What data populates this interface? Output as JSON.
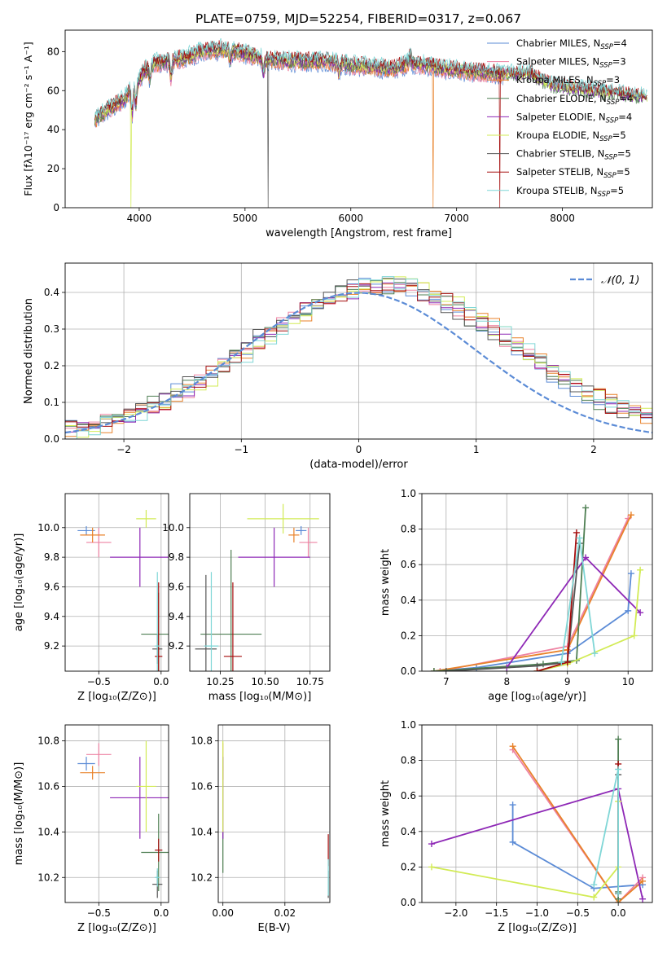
{
  "title": "PLATE=0759, MJD=52254, FIBERID=0317, z=0.067",
  "colors": {
    "chabrier_miles": "#5b8bd6",
    "salpeter_miles": "#ee82a2",
    "kroupa_miles": "#e8822a",
    "chabrier_elodie": "#4f7f53",
    "salpeter_elodie": "#8e28b6",
    "kroupa_elodie": "#d2eb55",
    "chabrier_stelib": "#555555",
    "salpeter_stelib": "#a50d0d",
    "kroupa_stelib": "#7fd6d6",
    "normal": "#5b8bd6"
  },
  "chart_data": [
    {
      "id": "spectrum",
      "type": "line",
      "xlabel": "wavelength [Angstrom, rest frame]",
      "ylabel": "Flux [fλ10⁻¹⁷ erg cm⁻² s⁻¹ A⁻¹]",
      "xlim": [
        3300,
        8850
      ],
      "ylim": [
        0,
        91
      ],
      "xticks": [
        "4000",
        "5000",
        "6000",
        "7000",
        "8000"
      ],
      "xtick_values": [
        4000,
        5000,
        6000,
        7000,
        8000
      ],
      "yticks": [
        "0",
        "20",
        "40",
        "60",
        "80"
      ],
      "ytick_values": [
        0,
        20,
        40,
        60,
        80
      ],
      "continuum": {
        "x": [
          3580,
          3700,
          3850,
          3950,
          4050,
          4150,
          4300,
          4450,
          4600,
          4800,
          5000,
          5200,
          5400,
          5600,
          5800,
          6000,
          6200,
          6400,
          6550,
          6700,
          6900,
          7100,
          7300,
          7500,
          7700,
          7800,
          7900,
          8200,
          8500,
          8800
        ],
        "y": [
          45,
          50,
          55,
          62,
          70,
          74,
          75,
          77,
          80,
          81,
          79,
          76,
          75,
          75,
          75,
          73,
          72,
          71,
          74,
          73,
          71,
          70,
          69,
          68,
          68,
          65,
          62,
          60,
          58,
          56
        ]
      },
      "legend": [
        "Chabrier MILES, N",
        "Salpeter MILES, N",
        "Kroupa MILES, N",
        "Chabrier ELODIE, N",
        "Salpeter ELODIE, N",
        "Kroupa ELODIE, N",
        "Chabrier STELIB, N",
        "Salpeter STELIB, N",
        "Kroupa STELIB, N"
      ],
      "legend_sub": "SSP",
      "legend_n": [
        "=4",
        "=3",
        "=3",
        "=4",
        "=4",
        "=5",
        "=5",
        "=5",
        "=5"
      ],
      "legend_placement": "upper-right",
      "grid": false
    },
    {
      "id": "residuals",
      "type": "step",
      "xlabel": "(data-model)/error",
      "ylabel": "Normed distribution",
      "xlim": [
        -2.5,
        2.5
      ],
      "ylim": [
        0,
        0.48
      ],
      "xticks": [
        "−2",
        "−1",
        "0",
        "1",
        "2"
      ],
      "xtick_values": [
        -2,
        -1,
        0,
        1,
        2
      ],
      "yticks": [
        "0.0",
        "0.1",
        "0.2",
        "0.3",
        "0.4"
      ],
      "ytick_values": [
        0,
        0.1,
        0.2,
        0.3,
        0.4
      ],
      "legend": "𝒩(0, 1)",
      "legend_placement": "upper-right",
      "grid": true
    },
    {
      "id": "z-age",
      "type": "errorbar",
      "xlabel": "Z [log₁₀(Z/Z⊙)]",
      "ylabel": "age  [log₁₀(age/yr)]",
      "xlim": [
        -0.77,
        0.06
      ],
      "ylim": [
        9.03,
        10.23
      ],
      "xticks": [
        "−0.5",
        "0.0"
      ],
      "xtick_values": [
        -0.5,
        0
      ],
      "yticks": [
        "9.2",
        "9.4",
        "9.6",
        "9.8",
        "10.0"
      ],
      "ytick_values": [
        9.2,
        9.4,
        9.6,
        9.8,
        10.0
      ],
      "grid": true,
      "points": [
        {
          "x": -0.6,
          "y": 9.98,
          "xerr": 0.07,
          "yerr": 0.03,
          "c": "chabrier_miles"
        },
        {
          "x": -0.5,
          "y": 9.9,
          "xerr": 0.1,
          "yerr": 0.1,
          "c": "salpeter_miles"
        },
        {
          "x": -0.55,
          "y": 9.95,
          "xerr": 0.1,
          "yerr": 0.05,
          "c": "kroupa_miles"
        },
        {
          "x": -0.02,
          "y": 9.28,
          "xerr": 0.14,
          "yerr": 0.28,
          "c": "chabrier_elodie"
        },
        {
          "x": -0.17,
          "y": 9.8,
          "xerr": 0.24,
          "yerr": 0.2,
          "c": "salpeter_elodie"
        },
        {
          "x": -0.12,
          "y": 10.06,
          "xerr": 0.08,
          "yerr": 0.06,
          "c": "kroupa_elodie"
        },
        {
          "x": -0.03,
          "y": 9.18,
          "xerr": 0.04,
          "yerr": 0.1,
          "c": "chabrier_stelib"
        },
        {
          "x": -0.02,
          "y": 9.13,
          "xerr": 0.03,
          "yerr": 0.5,
          "c": "salpeter_stelib"
        },
        {
          "x": -0.03,
          "y": 9.2,
          "xerr": 0.02,
          "yerr": 0.5,
          "c": "kroupa_stelib"
        }
      ]
    },
    {
      "id": "mass-age",
      "type": "errorbar",
      "xlabel": "mass [log₁₀(M/M⊙)]",
      "ylabel": "",
      "xlim": [
        10.08,
        10.86
      ],
      "ylim": [
        9.03,
        10.23
      ],
      "xticks": [
        "10.25",
        "10.50",
        "10.75"
      ],
      "xtick_values": [
        10.25,
        10.5,
        10.75
      ],
      "yticks": [
        "9.2",
        "9.4",
        "9.6",
        "9.8",
        "10.0"
      ],
      "ytick_values": [
        9.2,
        9.4,
        9.6,
        9.8,
        10.0
      ],
      "grid": true,
      "points": [
        {
          "x": 10.7,
          "y": 9.98,
          "xerr": 0.03,
          "yerr": 0.03,
          "c": "chabrier_miles"
        },
        {
          "x": 10.74,
          "y": 9.9,
          "xerr": 0.05,
          "yerr": 0.1,
          "c": "salpeter_miles"
        },
        {
          "x": 10.66,
          "y": 9.95,
          "xerr": 0.03,
          "yerr": 0.05,
          "c": "kroupa_miles"
        },
        {
          "x": 10.31,
          "y": 9.28,
          "xerr": 0.17,
          "yerr": 0.57,
          "c": "chabrier_elodie"
        },
        {
          "x": 10.55,
          "y": 9.8,
          "xerr": 0.2,
          "yerr": 0.2,
          "c": "salpeter_elodie"
        },
        {
          "x": 10.6,
          "y": 10.06,
          "xerr": 0.2,
          "yerr": 0.1,
          "c": "kroupa_elodie"
        },
        {
          "x": 10.17,
          "y": 9.18,
          "xerr": 0.06,
          "yerr": 0.5,
          "c": "chabrier_stelib"
        },
        {
          "x": 10.32,
          "y": 9.13,
          "xerr": 0.05,
          "yerr": 0.5,
          "c": "salpeter_stelib"
        },
        {
          "x": 10.2,
          "y": 9.2,
          "xerr": 0.04,
          "yerr": 0.5,
          "c": "kroupa_stelib"
        }
      ]
    },
    {
      "id": "age-weight",
      "type": "line",
      "xlabel": "age  [log₁₀(age/yr)]",
      "ylabel": "mass weight",
      "xlim": [
        6.6,
        10.4
      ],
      "ylim": [
        0,
        1
      ],
      "xticks": [
        "7",
        "8",
        "9",
        "10"
      ],
      "xtick_values": [
        7,
        8,
        9,
        10
      ],
      "yticks": [
        "0.0",
        "0.2",
        "0.4",
        "0.6",
        "0.8",
        "1.0"
      ],
      "ytick_values": [
        0,
        0.2,
        0.4,
        0.6,
        0.8,
        1.0
      ],
      "grid": true,
      "series": [
        {
          "c": "chabrier_miles",
          "x": [
            6.8,
            7.5,
            9.0,
            10.0,
            10.05
          ],
          "y": [
            0.0,
            0.02,
            0.1,
            0.34,
            0.55
          ]
        },
        {
          "c": "salpeter_miles",
          "x": [
            6.9,
            9.0,
            10.0
          ],
          "y": [
            0.0,
            0.14,
            0.86
          ]
        },
        {
          "c": "kroupa_miles",
          "x": [
            6.8,
            9.0,
            10.05
          ],
          "y": [
            0.0,
            0.12,
            0.88
          ]
        },
        {
          "c": "chabrier_elodie",
          "x": [
            6.8,
            8.6,
            9.15,
            9.3
          ],
          "y": [
            0.0,
            0.04,
            0.06,
            0.92
          ]
        },
        {
          "c": "salpeter_elodie",
          "x": [
            8.0,
            9.3,
            10.2
          ],
          "y": [
            0.02,
            0.64,
            0.33
          ]
        },
        {
          "c": "kroupa_elodie",
          "x": [
            8.5,
            9.0,
            10.1,
            10.2
          ],
          "y": [
            0.0,
            0.04,
            0.2,
            0.57
          ]
        },
        {
          "c": "chabrier_stelib",
          "x": [
            7.0,
            8.5,
            9.0,
            9.2
          ],
          "y": [
            0.0,
            0.03,
            0.05,
            0.72
          ]
        },
        {
          "c": "salpeter_stelib",
          "x": [
            8.5,
            9.0,
            9.15
          ],
          "y": [
            0.0,
            0.05,
            0.78
          ]
        },
        {
          "c": "kroupa_stelib",
          "x": [
            8.9,
            9.2,
            9.45
          ],
          "y": [
            0.05,
            0.75,
            0.1
          ]
        }
      ]
    },
    {
      "id": "z-mass",
      "type": "errorbar",
      "xlabel": "Z [log₁₀(Z/Z⊙)]",
      "ylabel": "mass [log₁₀(M/M⊙)]",
      "xlim": [
        -0.77,
        0.06
      ],
      "ylim": [
        10.09,
        10.87
      ],
      "xticks": [
        "−0.5",
        "0.0"
      ],
      "xtick_values": [
        -0.5,
        0
      ],
      "yticks": [
        "10.2",
        "10.4",
        "10.6",
        "10.8"
      ],
      "ytick_values": [
        10.2,
        10.4,
        10.6,
        10.8
      ],
      "grid": true,
      "points": [
        {
          "x": -0.6,
          "y": 10.7,
          "xerr": 0.07,
          "yerr": 0.03,
          "c": "chabrier_miles"
        },
        {
          "x": -0.5,
          "y": 10.74,
          "xerr": 0.1,
          "yerr": 0.05,
          "c": "salpeter_miles"
        },
        {
          "x": -0.55,
          "y": 10.66,
          "xerr": 0.1,
          "yerr": 0.03,
          "c": "kroupa_miles"
        },
        {
          "x": -0.02,
          "y": 10.31,
          "xerr": 0.14,
          "yerr": 0.17,
          "c": "chabrier_elodie"
        },
        {
          "x": -0.17,
          "y": 10.55,
          "xerr": 0.24,
          "yerr": 0.18,
          "c": "salpeter_elodie"
        },
        {
          "x": -0.12,
          "y": 10.6,
          "xerr": 0.08,
          "yerr": 0.2,
          "c": "kroupa_elodie"
        },
        {
          "x": -0.03,
          "y": 10.17,
          "xerr": 0.04,
          "yerr": 0.06,
          "c": "chabrier_stelib"
        },
        {
          "x": -0.02,
          "y": 10.32,
          "xerr": 0.03,
          "yerr": 0.05,
          "c": "salpeter_stelib"
        },
        {
          "x": -0.03,
          "y": 10.2,
          "xerr": 0.02,
          "yerr": 0.04,
          "c": "kroupa_stelib"
        }
      ]
    },
    {
      "id": "ebv-mass",
      "type": "errorbar",
      "xlabel": "E(B-V)",
      "ylabel": "",
      "xlim": [
        -0.0015,
        0.0345
      ],
      "ylim": [
        10.09,
        10.87
      ],
      "xticks": [
        "0.00",
        "0.02"
      ],
      "xtick_values": [
        0,
        0.02
      ],
      "yticks": [
        "10.2",
        "10.4",
        "10.6",
        "10.8"
      ],
      "ytick_values": [
        10.2,
        10.4,
        10.6,
        10.8
      ],
      "grid": true,
      "points": [
        {
          "x": 0.0,
          "y": 10.7,
          "xerr": 0,
          "yerr": 0.03,
          "c": "chabrier_miles"
        },
        {
          "x": 0.0,
          "y": 10.74,
          "xerr": 0,
          "yerr": 0.05,
          "c": "salpeter_miles"
        },
        {
          "x": 0.0,
          "y": 10.66,
          "xerr": 0,
          "yerr": 0.03,
          "c": "kroupa_miles"
        },
        {
          "x": 0.0,
          "y": 10.31,
          "xerr": 0,
          "yerr": 0.09,
          "c": "chabrier_elodie"
        },
        {
          "x": 0.0,
          "y": 10.55,
          "xerr": 0,
          "yerr": 0.18,
          "c": "salpeter_elodie"
        },
        {
          "x": 0.0,
          "y": 10.6,
          "xerr": 0,
          "yerr": 0.2,
          "c": "kroupa_elodie"
        },
        {
          "x": 0.034,
          "y": 10.17,
          "xerr": 0,
          "yerr": 0.06,
          "c": "chabrier_stelib"
        },
        {
          "x": 0.034,
          "y": 10.32,
          "xerr": 0,
          "yerr": 0.07,
          "c": "salpeter_stelib"
        },
        {
          "x": 0.034,
          "y": 10.2,
          "xerr": 0,
          "yerr": 0.08,
          "c": "kroupa_stelib"
        }
      ]
    },
    {
      "id": "z-weight",
      "type": "line",
      "xlabel": "Z [log₁₀(Z/Z⊙)]",
      "ylabel": "mass weight",
      "xlim": [
        -2.42,
        0.42
      ],
      "ylim": [
        0,
        1
      ],
      "xticks": [
        "−2.0",
        "−1.5",
        "−1.0",
        "−0.5",
        "0.0"
      ],
      "xtick_values": [
        -2.0,
        -1.5,
        -1.0,
        -0.5,
        0
      ],
      "yticks": [
        "0.0",
        "0.2",
        "0.4",
        "0.6",
        "0.8",
        "1.0"
      ],
      "ytick_values": [
        0,
        0.2,
        0.4,
        0.6,
        0.8,
        1.0
      ],
      "grid": true,
      "series": [
        {
          "c": "chabrier_miles",
          "x": [
            -1.3,
            -1.3,
            -0.3,
            0.3
          ],
          "y": [
            0.55,
            0.34,
            0.08,
            0.1
          ]
        },
        {
          "c": "salpeter_miles",
          "x": [
            -1.3,
            0.0,
            0.3
          ],
          "y": [
            0.86,
            0.0,
            0.14
          ]
        },
        {
          "c": "kroupa_miles",
          "x": [
            -1.3,
            0.0,
            0.3
          ],
          "y": [
            0.88,
            0.0,
            0.12
          ]
        },
        {
          "c": "chabrier_elodie",
          "x": [
            0.0,
            0.0,
            0.0
          ],
          "y": [
            0.92,
            0.06,
            0.02
          ]
        },
        {
          "c": "salpeter_elodie",
          "x": [
            -2.3,
            0.0,
            0.3
          ],
          "y": [
            0.33,
            0.64,
            0.02
          ]
        },
        {
          "c": "kroupa_elodie",
          "x": [
            -2.3,
            -0.3,
            0.0,
            0.0
          ],
          "y": [
            0.2,
            0.03,
            0.2,
            0.57
          ]
        },
        {
          "c": "chabrier_stelib",
          "x": [
            0.0,
            0.0
          ],
          "y": [
            0.72,
            0.05
          ]
        },
        {
          "c": "salpeter_stelib",
          "x": [
            0.0,
            0.0
          ],
          "y": [
            0.78,
            0.05
          ]
        },
        {
          "c": "kroupa_stelib",
          "x": [
            -0.3,
            0.0,
            0.0
          ],
          "y": [
            0.1,
            0.75,
            0.05
          ]
        }
      ]
    }
  ]
}
